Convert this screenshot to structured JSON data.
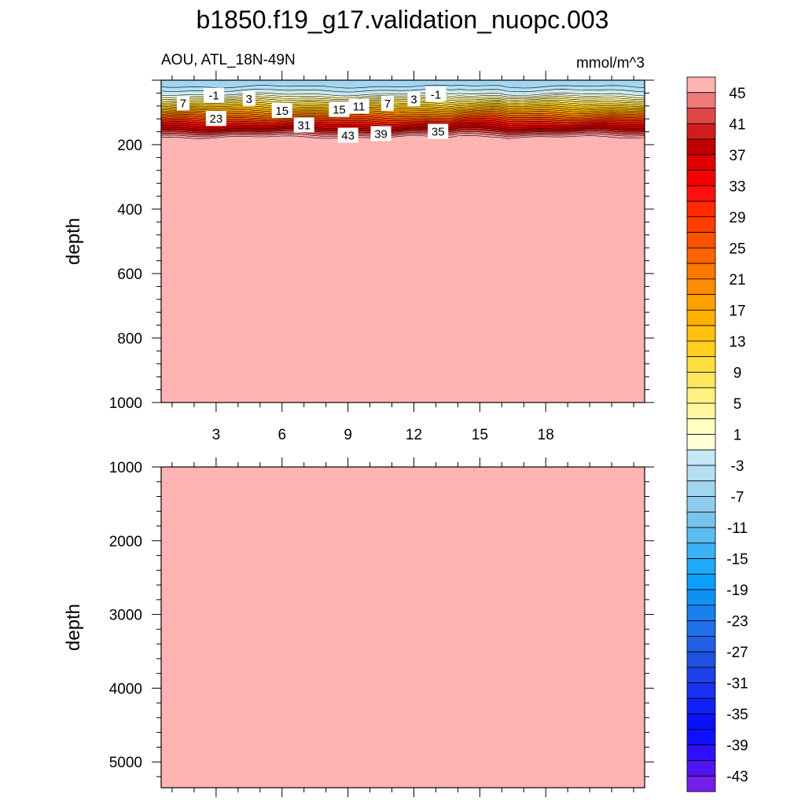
{
  "chart_data": {
    "type": "heatmap",
    "title": "b1850.f19_g17.validation_nuopc.003",
    "subtitle": "AOU, ATL_18N-49N",
    "units": "mmol/m^3",
    "x": {
      "range": [
        0.5,
        22.5
      ],
      "ticks": [
        3,
        6,
        9,
        12,
        15,
        18
      ],
      "tick_labels": [
        "3",
        "6",
        "9",
        "12",
        "15",
        "18"
      ]
    },
    "panels": [
      {
        "ylabel": "depth",
        "ylim": [
          0,
          1000
        ],
        "ticks": [
          200,
          400,
          600,
          800,
          1000
        ],
        "tick_labels": [
          "200",
          "400",
          "600",
          "800",
          "1000"
        ],
        "background_value": 47,
        "contour_labels": [
          {
            "text": "-1",
            "x": 2.9,
            "depth": 48
          },
          {
            "text": "3",
            "x": 4.5,
            "depth": 58
          },
          {
            "text": "7",
            "x": 1.5,
            "depth": 72
          },
          {
            "text": "15",
            "x": 6.0,
            "depth": 95
          },
          {
            "text": "15",
            "x": 8.6,
            "depth": 92
          },
          {
            "text": "11",
            "x": 9.5,
            "depth": 82
          },
          {
            "text": "7",
            "x": 10.8,
            "depth": 73
          },
          {
            "text": "3",
            "x": 12.0,
            "depth": 60
          },
          {
            "text": "-1",
            "x": 13.0,
            "depth": 45
          },
          {
            "text": "23",
            "x": 3.0,
            "depth": 120
          },
          {
            "text": "31",
            "x": 7.0,
            "depth": 140
          },
          {
            "text": "43",
            "x": 9.0,
            "depth": 172
          },
          {
            "text": "39",
            "x": 10.5,
            "depth": 167
          },
          {
            "text": "35",
            "x": 13.1,
            "depth": 160
          }
        ]
      },
      {
        "ylabel": "depth",
        "ylim": [
          1000,
          5350
        ],
        "ticks": [
          1000,
          2000,
          3000,
          4000,
          5000
        ],
        "tick_labels": [
          "1000",
          "2000",
          "3000",
          "4000",
          "5000"
        ],
        "background_value": 47
      }
    ],
    "colorbar": {
      "labels": [
        "45",
        "41",
        "37",
        "33",
        "29",
        "25",
        "21",
        "17",
        "13",
        "9",
        "5",
        "1",
        "-3",
        "-7",
        "-11",
        "-15",
        "-19",
        "-23",
        "-27",
        "-31",
        "-35",
        "-39",
        "-43"
      ],
      "colors": [
        "#ffb3b3",
        "#f07a7a",
        "#e04848",
        "#d01c1c",
        "#c00000",
        "#e00000",
        "#f50000",
        "#ff1010",
        "#ff2a00",
        "#ff3d00",
        "#ff5000",
        "#ff6400",
        "#ff7800",
        "#ff8c00",
        "#ffa000",
        "#ffb000",
        "#ffc010",
        "#ffd020",
        "#ffde40",
        "#ffe860",
        "#fff080",
        "#fff7a0",
        "#ffffc0",
        "#ffffd8",
        "#c4e8f5",
        "#b4e0f2",
        "#a2d6f0",
        "#8fcdee",
        "#78c4ee",
        "#5cbcf0",
        "#3cb2f5",
        "#20aafa",
        "#0a9ffa",
        "#1090f5",
        "#1a80f0",
        "#2070ea",
        "#2060e5",
        "#2050e0",
        "#1e40e8",
        "#1a30f0",
        "#1020f5",
        "#0a10f8",
        "#1010ff",
        "#3010f8",
        "#5015f0",
        "#7520ea"
      ]
    }
  }
}
